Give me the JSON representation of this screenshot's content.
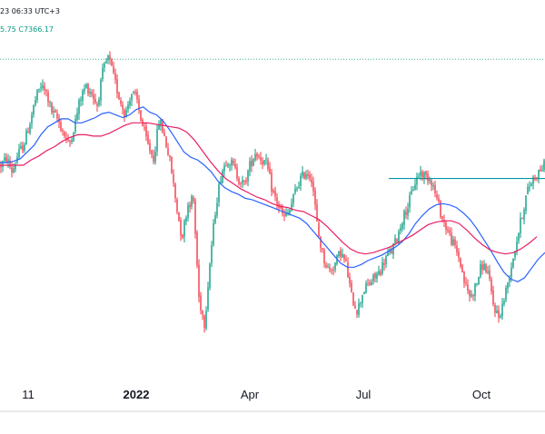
{
  "header": {
    "timestamp": "23 06:33 UTC+3",
    "ohlc": "5.75  C7366.17"
  },
  "colors": {
    "up": "#089981",
    "down": "#f23645",
    "ma_fast": "#2962ff",
    "ma_slow": "#e91e63",
    "resistance": "#0097a7",
    "top_level": "#089981",
    "axis_line": "#d1d4dc"
  },
  "chart_data": {
    "type": "candlestick",
    "title": "",
    "xlabel": "",
    "ylabel": "",
    "x_ticks": [
      {
        "label": "11",
        "bold": false
      },
      {
        "label": "2022",
        "bold": true
      },
      {
        "label": "Apr",
        "bold": false
      },
      {
        "label": "Jul",
        "bold": false
      },
      {
        "label": "Oct",
        "bold": false
      }
    ],
    "price_range": [
      4560,
      6850
    ],
    "series": [
      {
        "kind": "price",
        "values": [
          6000,
          6050,
          5950,
          6080,
          6150,
          6300,
          6480,
          6600,
          6550,
          6400,
          6350,
          6250,
          6150,
          6300,
          6500,
          6600,
          6550,
          6450,
          6700,
          6820,
          6650,
          6500,
          6380,
          6550,
          6500,
          6300,
          6150,
          6050,
          6350,
          6200,
          6000,
          5700,
          5450,
          5700,
          5750,
          5000,
          4800,
          5300,
          5700,
          5950,
          6050,
          6000,
          5900,
          5850,
          6000,
          6100,
          6050,
          6000,
          5800,
          5700,
          5600,
          5650,
          5800,
          5900,
          5950,
          5900,
          5500,
          5300,
          5200,
          5250,
          5350,
          5250,
          5000,
          4900,
          5050,
          5100,
          5150,
          5200,
          5300,
          5350,
          5450,
          5600,
          5700,
          5850,
          5950,
          5920,
          5900,
          5750,
          5600,
          5500,
          5400,
          5300,
          5100,
          5000,
          5100,
          5250,
          5200,
          4950,
          4850,
          5000,
          5200,
          5400,
          5600,
          5800,
          5900,
          5950,
          6000
        ]
      },
      {
        "name": "",
        "kind": "ma_fast",
        "values": [
          6020,
          6020,
          6030,
          6050,
          6100,
          6150,
          6230,
          6290,
          6320,
          6350,
          6350,
          6320,
          6320,
          6340,
          6360,
          6390,
          6400,
          6380,
          6360,
          6380,
          6420,
          6440,
          6400,
          6380,
          6330,
          6260,
          6180,
          6100,
          6060,
          6040,
          6000,
          5950,
          5880,
          5830,
          5800,
          5780,
          5750,
          5740,
          5720,
          5700,
          5680,
          5660,
          5640,
          5620,
          5600,
          5560,
          5500,
          5440,
          5380,
          5320,
          5260,
          5230,
          5230,
          5250,
          5280,
          5300,
          5320,
          5350,
          5380,
          5420,
          5480,
          5560,
          5620,
          5670,
          5700,
          5710,
          5700,
          5680,
          5640,
          5590,
          5520,
          5440,
          5360,
          5270,
          5190,
          5140,
          5120,
          5150,
          5220,
          5290,
          5340
        ]
      },
      {
        "name": "",
        "kind": "ma_slow",
        "values": [
          6000,
          6000,
          6000,
          6000,
          6040,
          6070,
          6110,
          6140,
          6180,
          6210,
          6230,
          6230,
          6220,
          6220,
          6240,
          6270,
          6300,
          6320,
          6320,
          6320,
          6310,
          6300,
          6290,
          6280,
          6250,
          6190,
          6110,
          6030,
          5960,
          5900,
          5860,
          5820,
          5790,
          5760,
          5740,
          5710,
          5690,
          5680,
          5660,
          5650,
          5620,
          5590,
          5540,
          5480,
          5420,
          5370,
          5340,
          5330,
          5340,
          5360,
          5380,
          5410,
          5440,
          5470,
          5510,
          5550,
          5570,
          5580,
          5580,
          5560,
          5510,
          5450,
          5400,
          5360,
          5340,
          5330,
          5340,
          5370,
          5410,
          5460
        ]
      }
    ],
    "resistance_level": 5900,
    "top_level": 6800,
    "grid": false,
    "legend": "none"
  }
}
